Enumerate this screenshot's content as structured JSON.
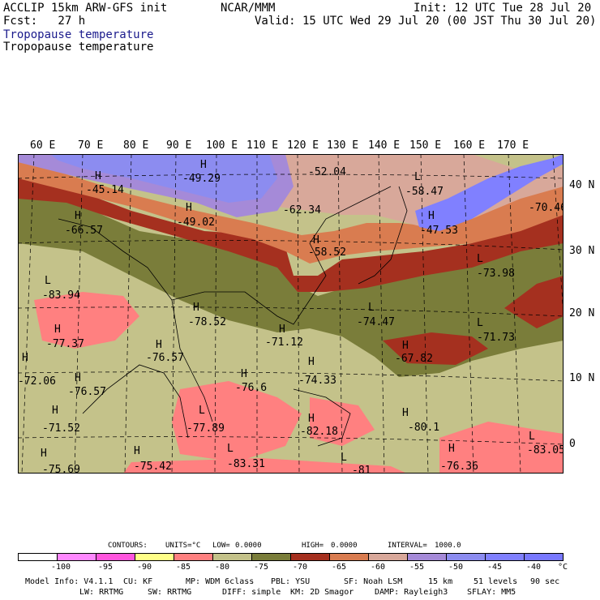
{
  "header": {
    "line1_left": "ACCLIP 15km ARW-GFS init",
    "line1_center": "NCAR/MMM",
    "line1_right": "Init: 12 UTC Tue 28 Jul 20",
    "line2_left": "Fcst:   27 h",
    "line2_right": "Valid: 15 UTC Wed 29 Jul 20 (00 JST Thu 30 Jul 20)",
    "field_title_1": "Tropopause temperature",
    "field_title_2": "Tropopause temperature",
    "field_title_1_color": "#1a1a8c"
  },
  "map": {
    "longitude_labels": [
      "60 E",
      "70 E",
      "80 E",
      "90 E",
      "100 E",
      "110 E",
      "120 E",
      "130 E",
      "140 E",
      "150 E",
      "160 E",
      "170 E"
    ],
    "latitude_labels": [
      "40 N",
      "30 N",
      "20 N",
      "10 N",
      "0"
    ],
    "markers": [
      {
        "letter": "H",
        "value": "-45.14"
      },
      {
        "letter": "H",
        "value": "-49.29"
      },
      {
        "letter": "L",
        "value": "-52.04"
      },
      {
        "letter": "L",
        "value": "-58.47"
      },
      {
        "letter": "L",
        "value": "-70.46"
      },
      {
        "letter": "H",
        "value": "-49.02"
      },
      {
        "letter": "H",
        "value": "-62.34"
      },
      {
        "letter": "H",
        "value": "-47.53"
      },
      {
        "letter": "H",
        "value": "-66.57"
      },
      {
        "letter": "H",
        "value": "-58.52"
      },
      {
        "letter": "L",
        "value": "-73.98"
      },
      {
        "letter": "L",
        "value": "-83.94"
      },
      {
        "letter": "H",
        "value": "-78.52"
      },
      {
        "letter": "L",
        "value": "-74.47"
      },
      {
        "letter": "H",
        "value": "-77.37"
      },
      {
        "letter": "H",
        "value": "-76.57"
      },
      {
        "letter": "H",
        "value": "-71.12"
      },
      {
        "letter": "H",
        "value": "-67.82"
      },
      {
        "letter": "L",
        "value": "-71.73"
      },
      {
        "letter": "H",
        "value": "-72.06"
      },
      {
        "letter": "H",
        "value": "-76.57"
      },
      {
        "letter": "H",
        "value": "-76.6"
      },
      {
        "letter": "H",
        "value": "-74.33"
      },
      {
        "letter": "H",
        "value": "-71.52"
      },
      {
        "letter": "L",
        "value": "-77.89"
      },
      {
        "letter": "H",
        "value": "-82.18"
      },
      {
        "letter": "H",
        "value": "-80.1"
      },
      {
        "letter": "L",
        "value": "-83.05"
      },
      {
        "letter": "H",
        "value": "-75.69"
      },
      {
        "letter": "H",
        "value": "-75.42"
      },
      {
        "letter": "L",
        "value": "-83.31"
      },
      {
        "letter": "H",
        "value": "-76.36"
      },
      {
        "letter": "L",
        "value": "-81"
      }
    ]
  },
  "contour_info": {
    "contours_label": "CONTOURS:",
    "units_label": "UNITS=°C",
    "low_label": "LOW=",
    "low_value": "0.0000",
    "high_label": "HIGH=",
    "high_value": "0.0000",
    "interval_label": "INTERVAL=",
    "interval_value": "1000.0"
  },
  "colorbar": {
    "colors": [
      "#ffffff",
      "#ff88ff",
      "#ff55dd",
      "#ffff88",
      "#ff8080",
      "#c4c28a",
      "#7a7d3a",
      "#a5301f",
      "#d97c50",
      "#d8a89a",
      "#a58ad8",
      "#8c8cf0",
      "#8080ff",
      "#7878ff"
    ],
    "tick_labels": [
      "-100",
      "-95",
      "-90",
      "-85",
      "-80",
      "-75",
      "-70",
      "-65",
      "-60",
      "-55",
      "-50",
      "-45",
      "-40"
    ],
    "unit_label": "°C"
  },
  "footer": {
    "line1": [
      "Model Info: V4.1.1",
      "CU: KF",
      "MP: WDM 6class",
      "PBL: YSU",
      "SF: Noah LSM",
      "15 km",
      "51 levels",
      "90 sec"
    ],
    "line2": [
      "LW: RRTMG",
      "SW: RRTMG",
      "DIFF: simple",
      "KM: 2D Smagor",
      "DAMP: Rayleigh3",
      "SFLAY: MM5"
    ]
  }
}
